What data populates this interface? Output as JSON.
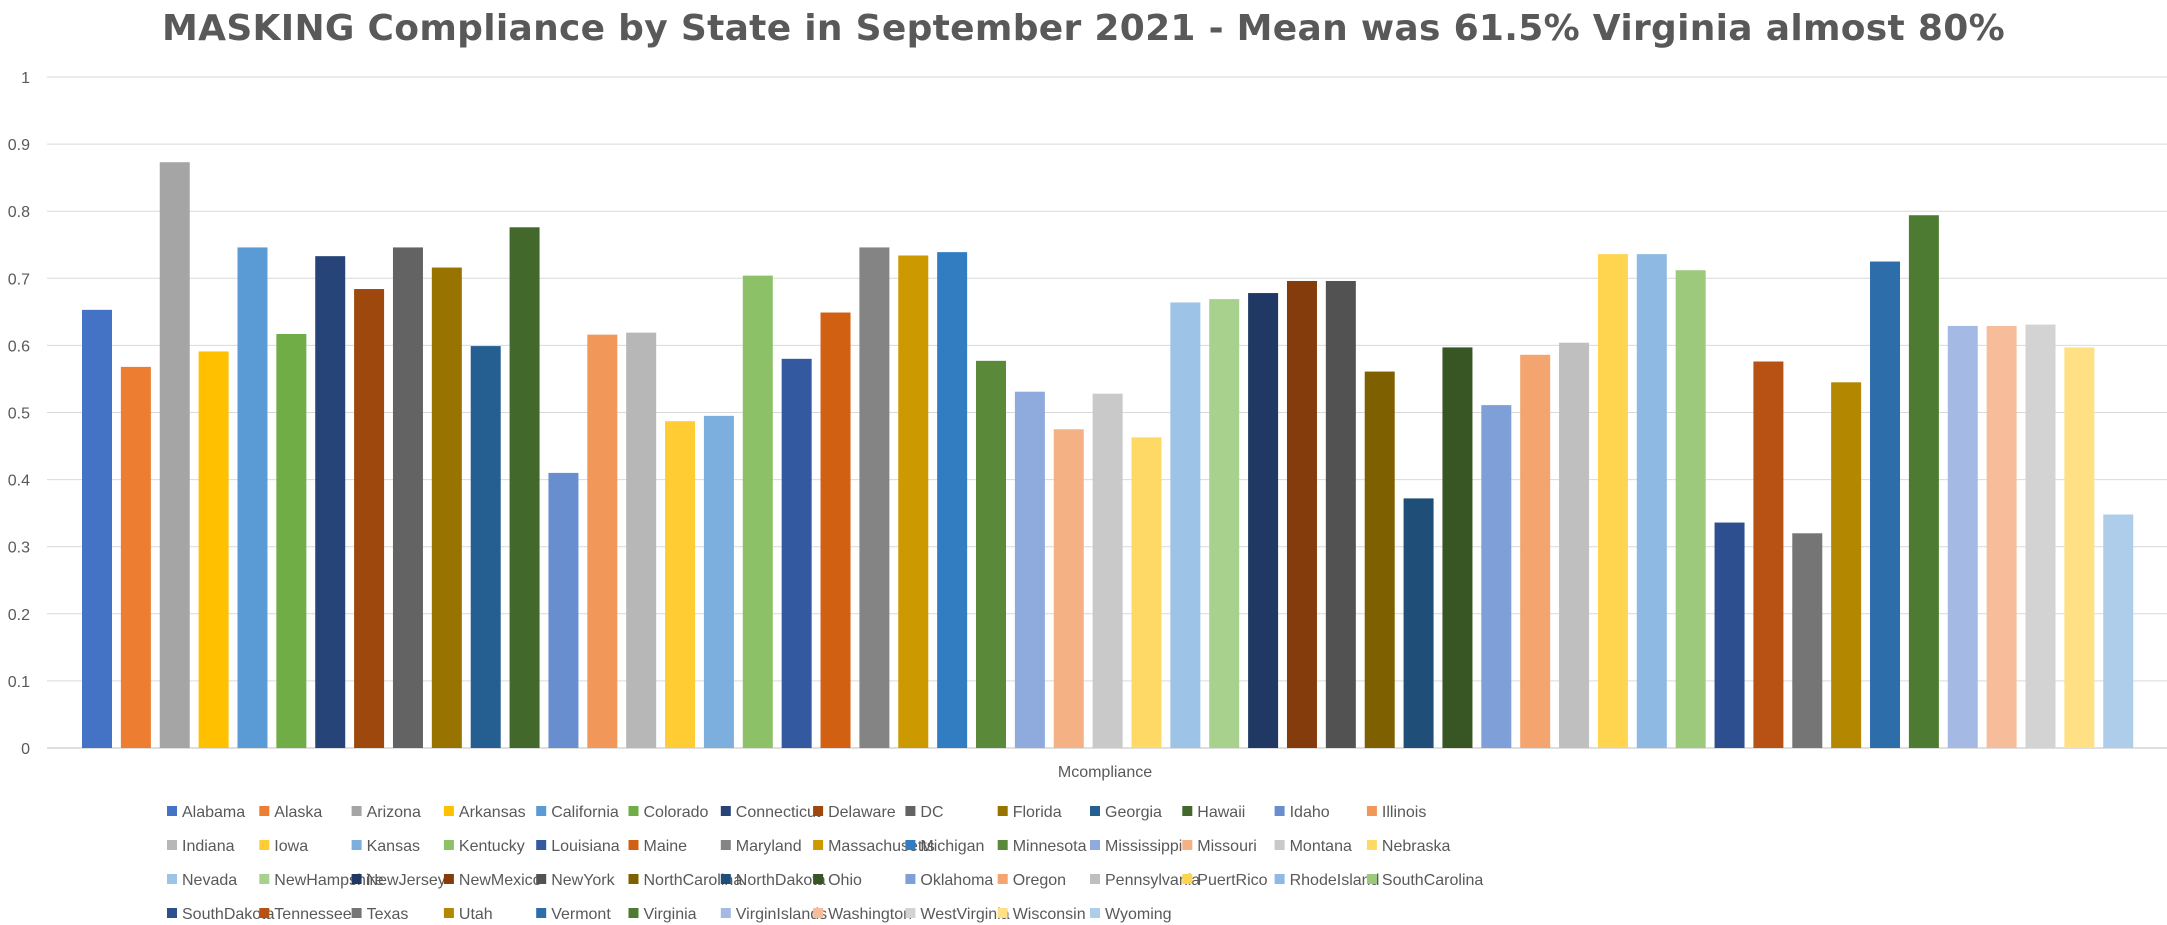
{
  "chart_data": {
    "type": "bar",
    "title": "MASKING Compliance by State in September 2021 - Mean was 61.5% Virginia almost 80%",
    "xlabel": "Mcompliance",
    "ylabel": "",
    "ylim": [
      0,
      1
    ],
    "yticks": [
      "0",
      "0.1",
      "0.2",
      "0.3",
      "0.4",
      "0.5",
      "0.6",
      "0.7",
      "0.8",
      "0.9",
      "1"
    ],
    "grid": true,
    "legend_position": "bottom",
    "categories": [
      "Mcompliance"
    ],
    "series": [
      {
        "name": "Alabama",
        "values": [
          0.653
        ],
        "color": "#4472C4"
      },
      {
        "name": "Alaska",
        "values": [
          0.568
        ],
        "color": "#ED7D31"
      },
      {
        "name": "Arizona",
        "values": [
          0.873
        ],
        "color": "#A5A5A5"
      },
      {
        "name": "Arkansas",
        "values": [
          0.591
        ],
        "color": "#FFC000"
      },
      {
        "name": "California",
        "values": [
          0.746
        ],
        "color": "#5B9BD5"
      },
      {
        "name": "Colorado",
        "values": [
          0.617
        ],
        "color": "#70AD47"
      },
      {
        "name": "Connecticut",
        "values": [
          0.733
        ],
        "color": "#264478"
      },
      {
        "name": "Delaware",
        "values": [
          0.684
        ],
        "color": "#9E480E"
      },
      {
        "name": "DC",
        "values": [
          0.746
        ],
        "color": "#636363"
      },
      {
        "name": "Florida",
        "values": [
          0.716
        ],
        "color": "#997300"
      },
      {
        "name": "Georgia",
        "values": [
          0.599
        ],
        "color": "#255E91"
      },
      {
        "name": "Hawaii",
        "values": [
          0.776
        ],
        "color": "#43682B"
      },
      {
        "name": "Idaho",
        "values": [
          0.41
        ],
        "color": "#698ED0"
      },
      {
        "name": "Illinois",
        "values": [
          0.616
        ],
        "color": "#F1975A"
      },
      {
        "name": "Indiana",
        "values": [
          0.619
        ],
        "color": "#B7B7B7"
      },
      {
        "name": "Iowa",
        "values": [
          0.487
        ],
        "color": "#FFCD33"
      },
      {
        "name": "Kansas",
        "values": [
          0.495
        ],
        "color": "#7CAFDD"
      },
      {
        "name": "Kentucky",
        "values": [
          0.704
        ],
        "color": "#8CC168"
      },
      {
        "name": "Louisiana",
        "values": [
          0.58
        ],
        "color": "#335AA1"
      },
      {
        "name": "Maine",
        "values": [
          0.649
        ],
        "color": "#D26012"
      },
      {
        "name": "Maryland",
        "values": [
          0.746
        ],
        "color": "#848484"
      },
      {
        "name": "Massachusetts",
        "values": [
          0.734
        ],
        "color": "#CC9A00"
      },
      {
        "name": "Michigan",
        "values": [
          0.739
        ],
        "color": "#327DC2"
      },
      {
        "name": "Minnesota",
        "values": [
          0.577
        ],
        "color": "#5A8A39"
      },
      {
        "name": "Mississippi",
        "values": [
          0.531
        ],
        "color": "#8FAADC"
      },
      {
        "name": "Missouri",
        "values": [
          0.475
        ],
        "color": "#F4B183"
      },
      {
        "name": "Montana",
        "values": [
          0.528
        ],
        "color": "#C9C9C9"
      },
      {
        "name": "Nebraska",
        "values": [
          0.463
        ],
        "color": "#FFD966"
      },
      {
        "name": "Nevada",
        "values": [
          0.664
        ],
        "color": "#9DC3E6"
      },
      {
        "name": "NewHampshire",
        "values": [
          0.669
        ],
        "color": "#A9D18E"
      },
      {
        "name": "NewJersey",
        "values": [
          0.678
        ],
        "color": "#203864"
      },
      {
        "name": "NewMexico",
        "values": [
          0.696
        ],
        "color": "#843C0C"
      },
      {
        "name": "NewYork",
        "values": [
          0.696
        ],
        "color": "#525252"
      },
      {
        "name": "NorthCarolina",
        "values": [
          0.561
        ],
        "color": "#7F6000"
      },
      {
        "name": "NorthDakota",
        "values": [
          0.372
        ],
        "color": "#1F4E79"
      },
      {
        "name": "Ohio",
        "values": [
          0.597
        ],
        "color": "#375623"
      },
      {
        "name": "Oklahoma",
        "values": [
          0.511
        ],
        "color": "#7F9FD8"
      },
      {
        "name": "Oregon",
        "values": [
          0.586
        ],
        "color": "#F3A46F"
      },
      {
        "name": "Pennsylvania",
        "values": [
          0.604
        ],
        "color": "#BFBFBF"
      },
      {
        "name": "PuertRico",
        "values": [
          0.736
        ],
        "color": "#FFD44F"
      },
      {
        "name": "RhodeIsland",
        "values": [
          0.736
        ],
        "color": "#8DB9E2"
      },
      {
        "name": "SouthCarolina",
        "values": [
          0.712
        ],
        "color": "#9CC97C"
      },
      {
        "name": "SouthDakota",
        "values": [
          0.336
        ],
        "color": "#2E4F8F"
      },
      {
        "name": "Tennessee",
        "values": [
          0.576
        ],
        "color": "#B85214"
      },
      {
        "name": "Texas",
        "values": [
          0.32
        ],
        "color": "#757575"
      },
      {
        "name": "Utah",
        "values": [
          0.545
        ],
        "color": "#B38700"
      },
      {
        "name": "Vermont",
        "values": [
          0.725
        ],
        "color": "#2C6DAA"
      },
      {
        "name": "Virginia",
        "values": [
          0.794
        ],
        "color": "#4E7B32"
      },
      {
        "name": "VirginIslands",
        "values": [
          0.629
        ],
        "color": "#A4B9E3"
      },
      {
        "name": "Washington",
        "values": [
          0.629
        ],
        "color": "#F7BD9A"
      },
      {
        "name": "WestVirginia",
        "values": [
          0.631
        ],
        "color": "#D3D3D3"
      },
      {
        "name": "Wisconsin",
        "values": [
          0.597
        ],
        "color": "#FFE085"
      },
      {
        "name": "Wyoming",
        "values": [
          0.348
        ],
        "color": "#AECDEA"
      }
    ]
  }
}
